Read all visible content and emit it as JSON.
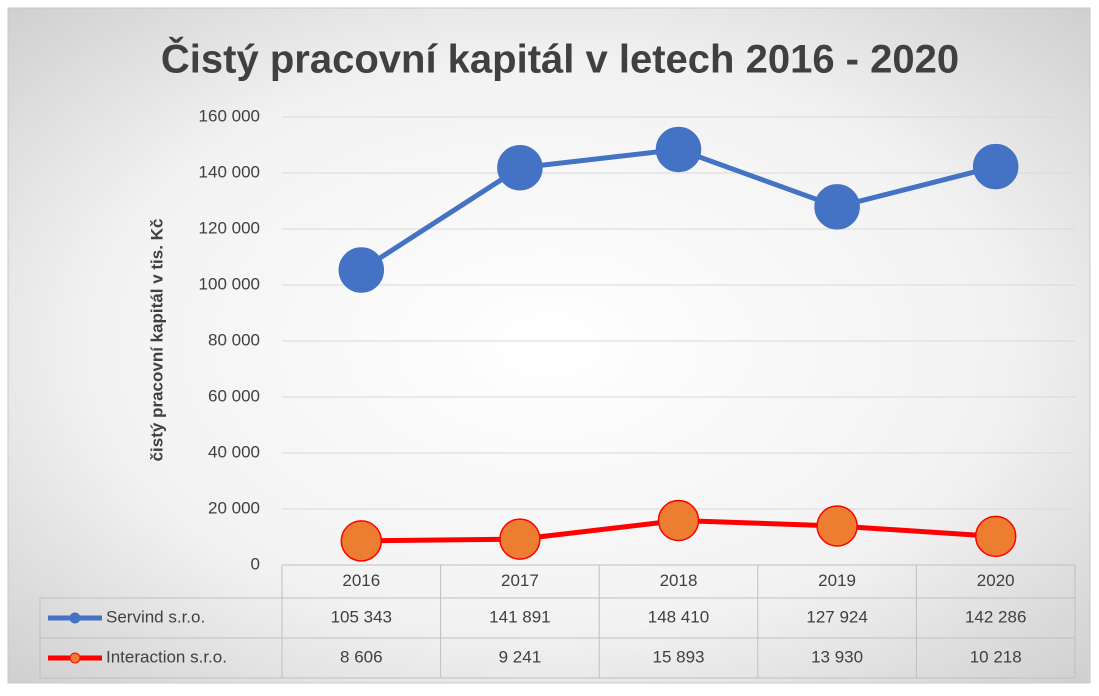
{
  "chart_data": {
    "type": "line",
    "title": "Čistý pracovní kapitál v letech 2016 - 2020",
    "y_label": "čistý pracovní kapitál v tis. Kč",
    "categories": [
      "2016",
      "2017",
      "2018",
      "2019",
      "2020"
    ],
    "series": [
      {
        "name": "Servind s.r.o.",
        "color": "#4472c4",
        "marker_color": "#4472c4",
        "values": [
          105343,
          141891,
          148410,
          127924,
          142286
        ],
        "value_labels": [
          "105 343",
          "141 891",
          "148 410",
          "127 924",
          "142 286"
        ]
      },
      {
        "name": "Interaction s.r.o.",
        "color": "#ff0000",
        "marker_color": "#ed7d31",
        "values": [
          8606,
          9241,
          15893,
          13930,
          10218
        ],
        "value_labels": [
          "8 606",
          "9 241",
          "15 893",
          "13 930",
          "10 218"
        ]
      }
    ],
    "ylim": [
      0,
      160000
    ],
    "yticks": [
      0,
      {
        "value": 20000,
        "label": "20 000"
      },
      {
        "value": 40000,
        "label": "40 000"
      },
      {
        "value": 60000,
        "label": "60 000"
      },
      {
        "value": 80000,
        "label": "80 000"
      },
      {
        "value": 100000,
        "label": "100 000"
      },
      {
        "value": 120000,
        "label": "120 000"
      },
      {
        "value": 140000,
        "label": "140 000"
      },
      {
        "value": 160000,
        "label": "160 000"
      }
    ],
    "grid": true,
    "data_table": true
  }
}
